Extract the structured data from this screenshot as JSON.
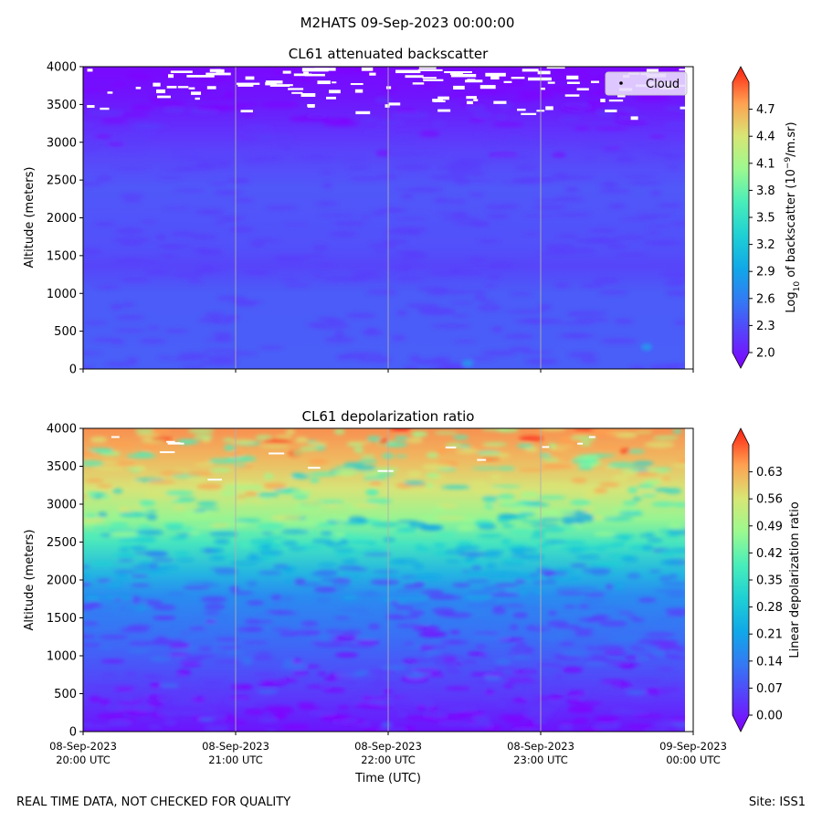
{
  "figure": {
    "suptitle": "M2HATS 09-Sep-2023 00:00:00",
    "footer_left": "REAL TIME DATA, NOT CHECKED FOR QUALITY",
    "footer_right": "Site: ISS1",
    "xlabel": "Time (UTC)"
  },
  "chart_data": [
    {
      "type": "heatmap",
      "title": "CL61 attenuated backscatter",
      "ylabel": "Altitude (meters)",
      "ylim": [
        0,
        4000
      ],
      "yticks": [
        0,
        500,
        1000,
        1500,
        2000,
        2500,
        3000,
        3500,
        4000
      ],
      "xticks": [
        "08-Sep-2023 20:00 UTC",
        "08-Sep-2023 21:00 UTC",
        "08-Sep-2023 22:00 UTC",
        "08-Sep-2023 23:00 UTC",
        "09-Sep-2023 00:00 UTC"
      ],
      "xtick_labels_shown": false,
      "grid": "vertical lines at hourly ticks",
      "legend": {
        "entries": [
          "Cloud"
        ],
        "placement": "top-right"
      },
      "colormap": "rainbow",
      "colorbar": {
        "label_pre": "Log",
        "label_sub": "10",
        "label_mid": " of backscatter (10",
        "label_sup": "−9",
        "label_post": "/m.sr)",
        "range": [
          2.0,
          5.0
        ],
        "ticks": [
          "2.0",
          "2.3",
          "2.6",
          "2.9",
          "3.2",
          "3.5",
          "3.8",
          "4.1",
          "4.4",
          "4.7"
        ],
        "extend": "both"
      },
      "profile": {
        "altitude_m": [
          0,
          500,
          1000,
          1500,
          2000,
          2500,
          3000,
          3500,
          4000
        ],
        "approx_value": [
          2.35,
          2.35,
          2.3,
          2.32,
          2.32,
          2.3,
          2.22,
          2.12,
          2.05
        ]
      },
      "features": [
        {
          "label": "Cloud",
          "altitude_m": [
            3300,
            4000
          ],
          "description_value": "missing/white patches near top"
        }
      ]
    },
    {
      "type": "heatmap",
      "title": "CL61 depolarization ratio",
      "ylabel": "Altitude (meters)",
      "ylim": [
        0,
        4000
      ],
      "yticks": [
        0,
        500,
        1000,
        1500,
        2000,
        2500,
        3000,
        3500,
        4000
      ],
      "xticks": [
        "08-Sep-2023 20:00 UTC",
        "08-Sep-2023 21:00 UTC",
        "08-Sep-2023 22:00 UTC",
        "08-Sep-2023 23:00 UTC",
        "09-Sep-2023 00:00 UTC"
      ],
      "xtick_labels": [
        [
          "08-Sep-2023",
          "20:00 UTC"
        ],
        [
          "08-Sep-2023",
          "21:00 UTC"
        ],
        [
          "08-Sep-2023",
          "22:00 UTC"
        ],
        [
          "08-Sep-2023",
          "23:00 UTC"
        ],
        [
          "09-Sep-2023",
          "00:00 UTC"
        ]
      ],
      "grid": "vertical lines at hourly ticks",
      "colormap": "rainbow",
      "colorbar": {
        "label": "Linear depolarization ratio",
        "range": [
          0.0,
          0.7
        ],
        "ticks": [
          "0.00",
          "0.07",
          "0.14",
          "0.21",
          "0.28",
          "0.35",
          "0.42",
          "0.49",
          "0.56",
          "0.63"
        ],
        "extend": "both"
      },
      "profile": {
        "altitude_m": [
          0,
          500,
          1000,
          1500,
          2000,
          2500,
          3000,
          3500,
          4000
        ],
        "approx_value": [
          0.04,
          0.05,
          0.08,
          0.11,
          0.16,
          0.3,
          0.42,
          0.5,
          0.55
        ]
      }
    }
  ]
}
